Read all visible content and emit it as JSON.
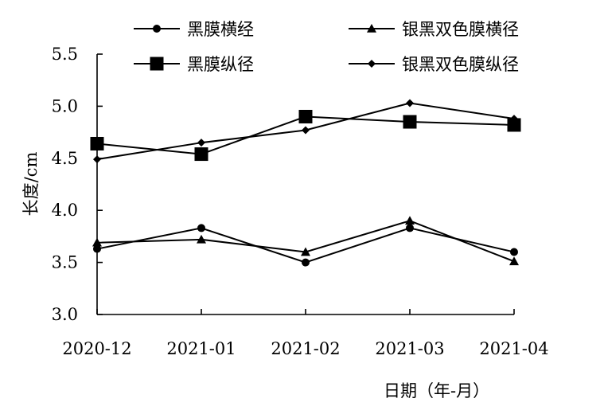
{
  "chart_data": {
    "type": "line",
    "categories": [
      "2020-12",
      "2021-01",
      "2021-02",
      "2021-03",
      "2021-04"
    ],
    "ylim": [
      3.0,
      5.5
    ],
    "yticks": [
      "3.0",
      "3.5",
      "4.0",
      "4.5",
      "5.0",
      "5.5"
    ],
    "xlabel": "日期（年-月）",
    "ylabel": "长度/cm",
    "grid": false,
    "legend_position": "top",
    "series": [
      {
        "name": "黑膜横经",
        "marker": "circle",
        "values": [
          3.63,
          3.83,
          3.5,
          3.83,
          3.6
        ]
      },
      {
        "name": "银黑双色膜横径",
        "marker": "triangle",
        "values": [
          3.69,
          3.72,
          3.6,
          3.9,
          3.51
        ]
      },
      {
        "name": "黑膜纵径",
        "marker": "square",
        "values": [
          4.64,
          4.54,
          4.9,
          4.85,
          4.82
        ]
      },
      {
        "name": "银黑双色膜纵径",
        "marker": "diamond",
        "values": [
          4.49,
          4.65,
          4.77,
          5.03,
          4.88
        ]
      }
    ]
  }
}
